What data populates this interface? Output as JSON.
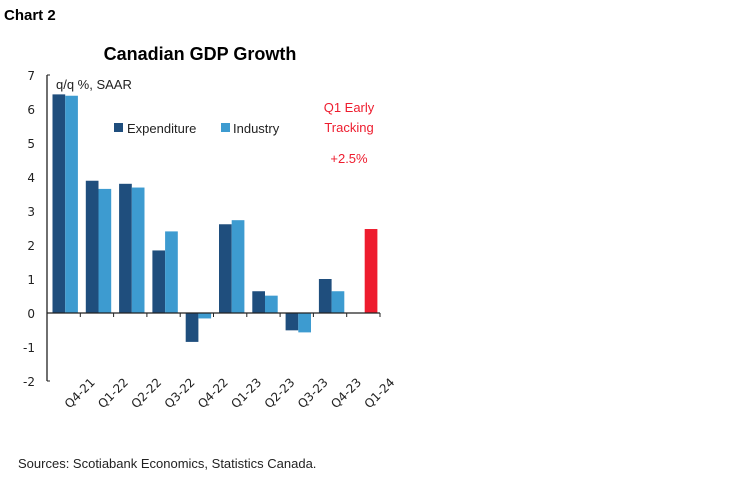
{
  "header": {
    "chart_label": "Chart 2"
  },
  "footer": {
    "source": "Sources: Scotiabank Economics, Statistics Canada."
  },
  "chart_data": {
    "type": "bar",
    "title": "Canadian GDP Growth",
    "ylabel": "q/q %, SAAR",
    "ylim": [
      -2,
      7
    ],
    "yticks": [
      "-2",
      "-1",
      "0",
      "1",
      "2",
      "3",
      "4",
      "5",
      "6",
      "7"
    ],
    "categories": [
      "Q4-21",
      "Q1-22",
      "Q2-22",
      "Q3-22",
      "Q4-22",
      "Q1-23",
      "Q2-23",
      "Q3-23",
      "Q4-23",
      "Q1-24"
    ],
    "series": [
      {
        "name": "Expenditure",
        "color": "#1f4e7d",
        "values": [
          6.43,
          3.89,
          3.8,
          1.84,
          -0.85,
          2.61,
          0.64,
          -0.51,
          1.0,
          null
        ]
      },
      {
        "name": "Industry",
        "color": "#3d9bd0",
        "values": [
          6.39,
          3.65,
          3.69,
          2.4,
          -0.16,
          2.73,
          0.51,
          -0.57,
          0.64,
          null
        ]
      }
    ],
    "highlight": {
      "category": "Q1-24",
      "value": 2.47,
      "color": "#ee1c2e"
    },
    "annotation": {
      "line1": "Q1 Early",
      "line2": "Tracking",
      "line3": "+2.5%",
      "color": "#ee1c2e"
    },
    "legend": "top-center",
    "grid": false
  }
}
